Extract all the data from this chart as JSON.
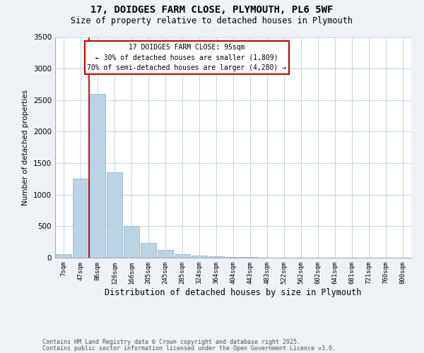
{
  "title1": "17, DOIDGES FARM CLOSE, PLYMOUTH, PL6 5WF",
  "title2": "Size of property relative to detached houses in Plymouth",
  "xlabel": "Distribution of detached houses by size in Plymouth",
  "ylabel": "Number of detached properties",
  "categories": [
    "7sqm",
    "47sqm",
    "86sqm",
    "126sqm",
    "166sqm",
    "205sqm",
    "245sqm",
    "285sqm",
    "324sqm",
    "364sqm",
    "404sqm",
    "443sqm",
    "483sqm",
    "522sqm",
    "562sqm",
    "602sqm",
    "641sqm",
    "681sqm",
    "721sqm",
    "760sqm",
    "800sqm"
  ],
  "values": [
    55,
    1250,
    2600,
    1350,
    500,
    230,
    120,
    55,
    30,
    18,
    12,
    8,
    5,
    2,
    1,
    1,
    0,
    0,
    0,
    0,
    0
  ],
  "bar_color": "#bad4e6",
  "bar_edge_color": "#90b8d4",
  "red_line_index": 2,
  "annotation_line1": "17 DOIDGES FARM CLOSE: 95sqm",
  "annotation_line2": "← 30% of detached houses are smaller (1,809)",
  "annotation_line3": "70% of semi-detached houses are larger (4,280) →",
  "annotation_box_color": "#ffffff",
  "annotation_box_edge": "#cc0000",
  "ylim": [
    0,
    3500
  ],
  "yticks": [
    0,
    500,
    1000,
    1500,
    2000,
    2500,
    3000,
    3500
  ],
  "footer1": "Contains HM Land Registry data © Crown copyright and database right 2025.",
  "footer2": "Contains public sector information licensed under the Open Government Licence v3.0.",
  "bg_color": "#eef2f7",
  "plot_bg_color": "#ffffff",
  "grid_color": "#c5d5e5"
}
